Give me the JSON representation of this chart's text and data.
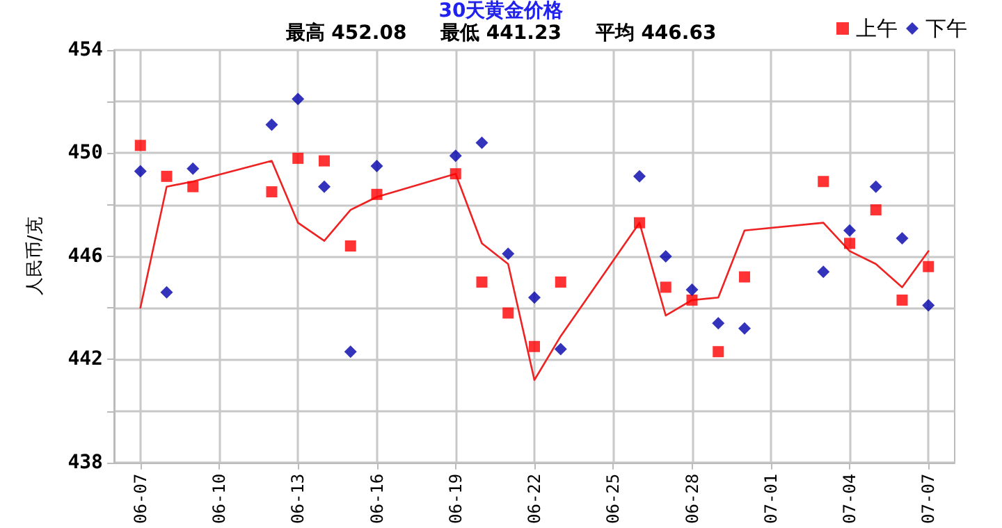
{
  "chart_data": {
    "type": "scatter",
    "title": "30天黄金价格",
    "subtitle": "最高 452.08     最低 441.23     平均 446.63",
    "ylabel": "人民币/克",
    "x": [
      "--06-07",
      "--06-08",
      "--06-09",
      "--06-12",
      "--06-13",
      "--06-14",
      "--06-15",
      "--06-16",
      "--06-19",
      "--06-20",
      "--06-21",
      "--06-22",
      "--06-23",
      "--06-26",
      "--06-27",
      "--06-28",
      "--06-29",
      "--06-30",
      "--07-03",
      "--07-04",
      "--07-05",
      "--07-06",
      "--07-07"
    ],
    "series": [
      {
        "name": "上午",
        "color": "#ff0000",
        "marker": "square",
        "values": [
          450.3,
          449.1,
          448.7,
          448.5,
          449.8,
          449.7,
          446.4,
          448.4,
          449.2,
          445.0,
          443.8,
          442.5,
          445.0,
          447.3,
          444.8,
          444.3,
          442.3,
          445.2,
          448.9,
          446.5,
          447.8,
          444.3,
          445.6
        ]
      },
      {
        "name": "下午",
        "color": "#0000aa",
        "marker": "diamond",
        "values": [
          449.3,
          444.6,
          449.4,
          451.1,
          452.1,
          448.7,
          442.3,
          449.5,
          449.9,
          450.4,
          446.1,
          444.4,
          442.4,
          449.1,
          446.0,
          444.7,
          443.4,
          443.2,
          445.4,
          447.0,
          448.7,
          446.7,
          444.1
        ]
      },
      {
        "type": "line",
        "color": "#ee2222",
        "marker": "none",
        "values": [
          444.0,
          448.7,
          448.9,
          449.7,
          447.3,
          446.6,
          447.8,
          448.3,
          449.2,
          446.5,
          445.7,
          441.2,
          442.9,
          447.3,
          443.7,
          444.3,
          444.4,
          447.0,
          447.3,
          446.2,
          445.7,
          444.8,
          446.2
        ]
      }
    ],
    "xlim": [
      "--06-06",
      "--07-08"
    ],
    "xticks": [
      {
        "value": "--06-07",
        "label": "06-07"
      },
      {
        "value": "--06-10",
        "label": "06-10"
      },
      {
        "value": "--06-13",
        "label": "06-13"
      },
      {
        "value": "--06-16",
        "label": "06-16"
      },
      {
        "value": "--06-19",
        "label": "06-19"
      },
      {
        "value": "--06-22",
        "label": "06-22"
      },
      {
        "value": "--06-25",
        "label": "06-25"
      },
      {
        "value": "--06-28",
        "label": "06-28"
      },
      {
        "value": "--07-01",
        "label": "07-01"
      },
      {
        "value": "--07-04",
        "label": "07-04"
      },
      {
        "value": "--07-07",
        "label": "07-07"
      }
    ],
    "ylim": [
      438,
      454
    ],
    "yticks": [
      438,
      {
        "value": 440,
        "label": null
      },
      442,
      {
        "value": 444,
        "label": null
      },
      446,
      {
        "value": 448,
        "label": null
      },
      450,
      {
        "value": 452,
        "label": null
      },
      454
    ],
    "grid": true,
    "legend": "top right"
  }
}
